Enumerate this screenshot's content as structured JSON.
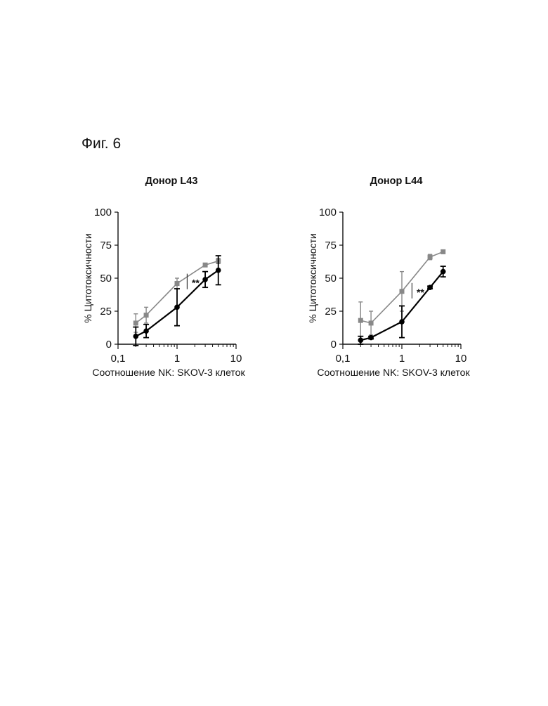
{
  "figure": {
    "label": "Фиг. 6"
  },
  "chart_data": [
    {
      "type": "line",
      "title": "Донор L43",
      "xlabel": "Соотношение NK: SKOV-3 клеток",
      "ylabel": "% Цитотоксичности",
      "xscale": "log",
      "xlim": [
        0.1,
        10
      ],
      "ylim": [
        0,
        100
      ],
      "xticks": [
        {
          "value": 0.1,
          "label": "0,1"
        },
        {
          "value": 1,
          "label": "1"
        },
        {
          "value": 10,
          "label": "10"
        }
      ],
      "yticks": [
        {
          "value": 0,
          "label": "0"
        },
        {
          "value": 25,
          "label": "25"
        },
        {
          "value": 50,
          "label": "50"
        },
        {
          "value": 75,
          "label": "75"
        },
        {
          "value": 100,
          "label": "100"
        }
      ],
      "grid": false,
      "annotations": [
        {
          "text": "**",
          "x": 1.75,
          "y": 47
        }
      ],
      "series": [
        {
          "color": "#888888",
          "marker": "square",
          "x": [
            0.2,
            0.3,
            1,
            3,
            5
          ],
          "y": [
            16,
            22,
            46,
            60,
            63
          ],
          "err": [
            7,
            6,
            4,
            1,
            2
          ]
        },
        {
          "color": "#000000",
          "marker": "circle",
          "x": [
            0.2,
            0.3,
            1,
            3,
            5
          ],
          "y": [
            6,
            10,
            28,
            49,
            56
          ],
          "err": [
            7,
            5,
            14,
            6,
            11
          ]
        }
      ]
    },
    {
      "type": "line",
      "title": "Донор L44",
      "xlabel": "Соотношение NK: SKOV-3 клеток",
      "ylabel": "% Цитотоксичности",
      "xscale": "log",
      "xlim": [
        0.1,
        10
      ],
      "ylim": [
        0,
        100
      ],
      "xticks": [
        {
          "value": 0.1,
          "label": "0,1"
        },
        {
          "value": 1,
          "label": "1"
        },
        {
          "value": 10,
          "label": "10"
        }
      ],
      "yticks": [
        {
          "value": 0,
          "label": "0"
        },
        {
          "value": 25,
          "label": "25"
        },
        {
          "value": 50,
          "label": "50"
        },
        {
          "value": 75,
          "label": "75"
        },
        {
          "value": 100,
          "label": "100"
        }
      ],
      "grid": false,
      "annotations": [
        {
          "text": "**",
          "x": 1.75,
          "y": 40
        }
      ],
      "series": [
        {
          "color": "#888888",
          "marker": "square",
          "x": [
            0.2,
            0.3,
            1,
            3,
            5
          ],
          "y": [
            18,
            16,
            40,
            66,
            70
          ],
          "err": [
            14,
            9,
            15,
            2,
            1
          ]
        },
        {
          "color": "#000000",
          "marker": "circle",
          "x": [
            0.2,
            0.3,
            1,
            3,
            5
          ],
          "y": [
            3,
            5,
            17,
            43,
            55
          ],
          "err": [
            3,
            1,
            12,
            1,
            4
          ]
        }
      ]
    }
  ]
}
